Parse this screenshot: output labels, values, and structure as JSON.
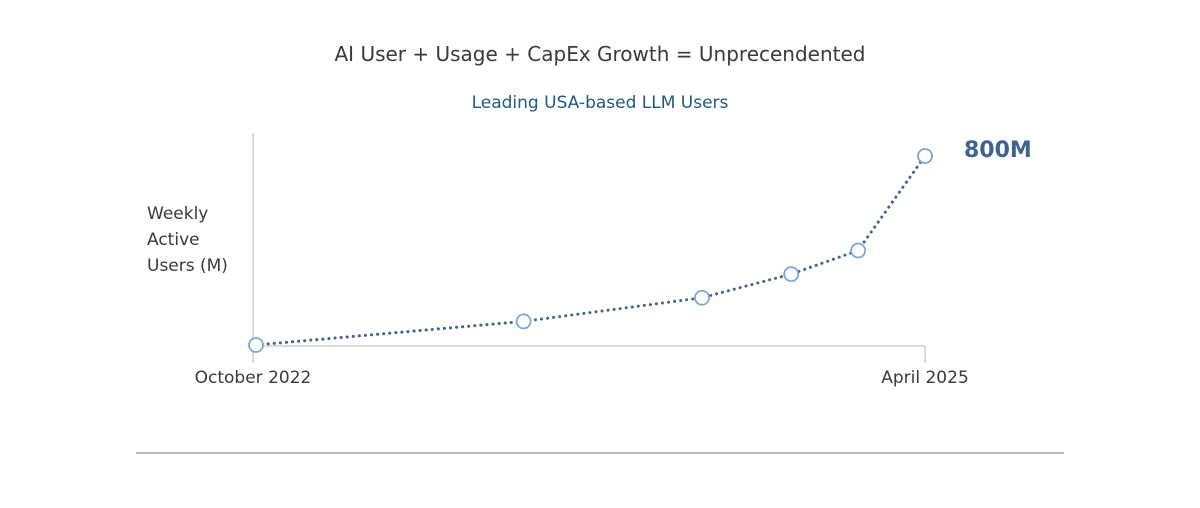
{
  "header": {
    "title": "AI User + Usage + CapEx Growth = Unprecendented",
    "subtitle": "Leading USA-based LLM Users"
  },
  "chart_data": {
    "type": "line",
    "title": "AI User + Usage + CapEx Growth = Unprecendented",
    "subtitle": "Leading USA-based LLM Users",
    "ylabel": "Weekly\nActive\nUsers (M)",
    "xlabel": "",
    "x_tick_labels": [
      "October 2022",
      "April 2025"
    ],
    "x_range": [
      "2022-10",
      "2025-04"
    ],
    "ylim": [
      0,
      800
    ],
    "grid": false,
    "legend": "none",
    "series": [
      {
        "x": [
          "2022-10",
          "2023-10",
          "2024-06",
          "2024-10",
          "2025-01",
          "2025-04"
        ],
        "values": [
          0,
          100,
          200,
          300,
          400,
          800
        ],
        "color": "#3d6491",
        "marker": "open-circle",
        "line_style": "dotted"
      }
    ],
    "annotations": [
      {
        "text": "800M",
        "x": "2025-04",
        "y": 800
      }
    ]
  }
}
